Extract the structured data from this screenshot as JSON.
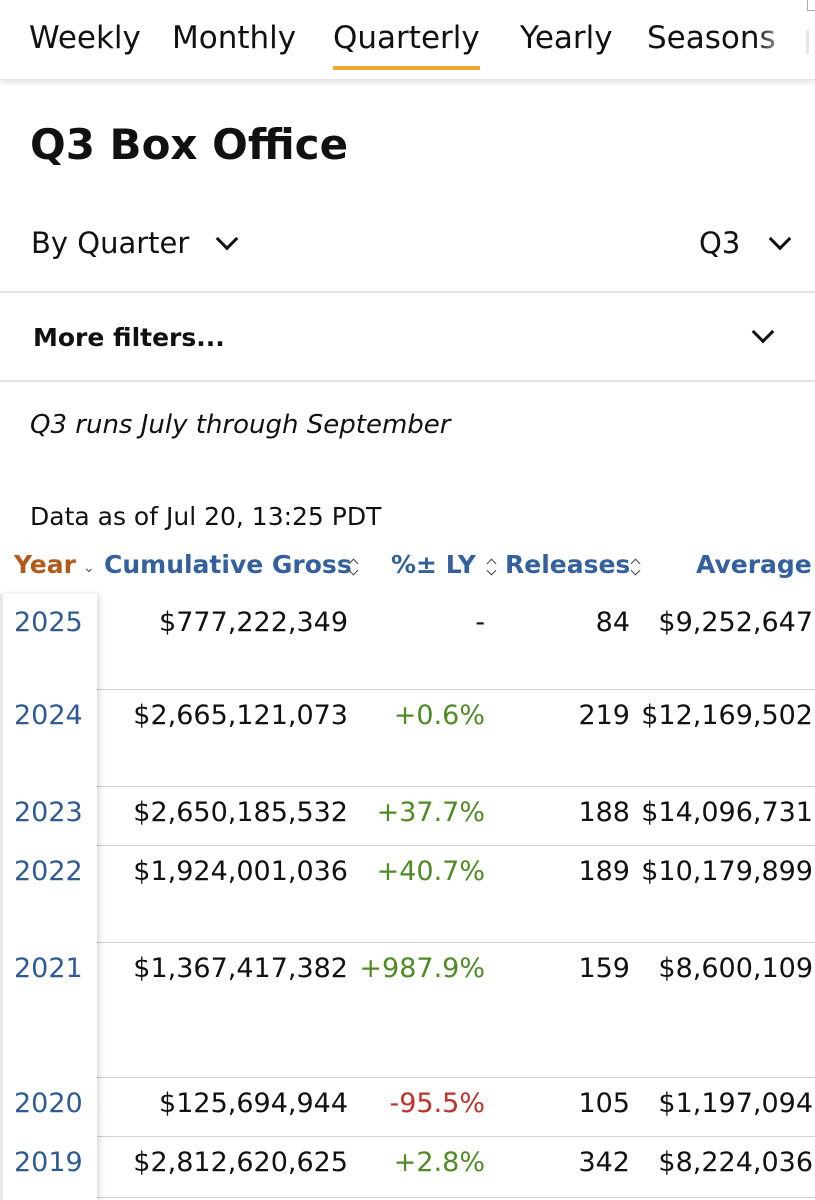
{
  "tabs": [
    {
      "label": "Weekly",
      "active": false
    },
    {
      "label": "Monthly",
      "active": false
    },
    {
      "label": "Quarterly",
      "active": true
    },
    {
      "label": "Yearly",
      "active": false
    },
    {
      "label": "Seasons",
      "active": false
    }
  ],
  "accent_color": "#f2a530",
  "page_title": "Q3 Box Office",
  "filters": {
    "by_label": "By Quarter",
    "quarter_value": "Q3",
    "more_label": "More filters..."
  },
  "note": "Q3 runs July through September",
  "as_of": "Data as of Jul 20, 13:25 PDT",
  "table": {
    "headers": {
      "year": "Year",
      "gross": "Cumulative Gross",
      "pct": "%± LY",
      "releases": "Releases",
      "average": "Average"
    },
    "rows": [
      {
        "year": "2025",
        "gross": "$777,222,349",
        "pct": "-",
        "releases": "84",
        "average": "$9,252,647"
      },
      {
        "year": "2024",
        "gross": "$2,665,121,073",
        "pct": "+0.6%",
        "releases": "219",
        "average": "$12,169,502"
      },
      {
        "year": "2023",
        "gross": "$2,650,185,532",
        "pct": "+37.7%",
        "releases": "188",
        "average": "$14,096,731"
      },
      {
        "year": "2022",
        "gross": "$1,924,001,036",
        "pct": "+40.7%",
        "releases": "189",
        "average": "$10,179,899"
      },
      {
        "year": "2021",
        "gross": "$1,367,417,382",
        "pct": "+987.9%",
        "releases": "159",
        "average": "$8,600,109"
      },
      {
        "year": "2020",
        "gross": "$125,694,944",
        "pct": "-95.5%",
        "releases": "105",
        "average": "$1,197,094"
      },
      {
        "year": "2019",
        "gross": "$2,812,620,625",
        "pct": "+2.8%",
        "releases": "342",
        "average": "$8,224,036"
      }
    ]
  }
}
